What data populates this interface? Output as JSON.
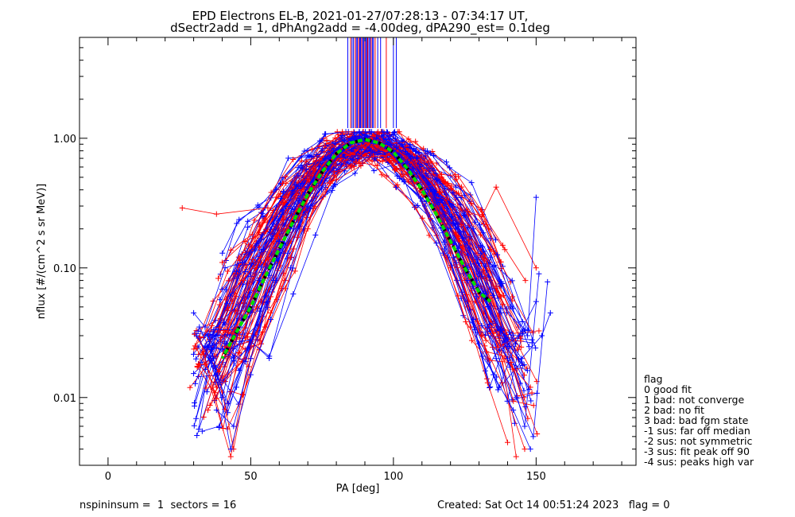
{
  "chart_data": {
    "type": "line",
    "title_line1": "EPD Electrons EL-B, 2021-01-27/07:28:13 - 07:34:17 UT,",
    "title_line2": "dSectr2add = 1, dPhAng2add = -4.00deg, dPA290_est=   0.1deg",
    "xlabel": "PA [deg]",
    "ylabel": "nflux [#/(cm^2 s sr MeV)]",
    "xlim": [
      -10,
      185
    ],
    "ylim": [
      0.003,
      6
    ],
    "yscale": "log",
    "x_ticks": [
      {
        "value": 0,
        "label": "0"
      },
      {
        "value": 50,
        "label": "50"
      },
      {
        "value": 100,
        "label": "100"
      },
      {
        "value": 150,
        "label": "150"
      }
    ],
    "y_ticks": [
      {
        "value": 0.01,
        "label": "0.01"
      },
      {
        "value": 0.1,
        "label": "0.10"
      },
      {
        "value": 1,
        "label": "1.00"
      }
    ],
    "series": [
      {
        "color": "#ff0000",
        "marker": "+",
        "style": "data traces"
      },
      {
        "color": "#0000ff",
        "marker": "+",
        "style": "data traces"
      },
      {
        "color": "#00dd00",
        "style": "dashed fit curve"
      }
    ],
    "fit_curve": {
      "x": [
        40,
        45,
        50,
        55,
        60,
        65,
        70,
        75,
        80,
        85,
        90,
        95,
        100,
        105,
        110,
        115,
        120,
        125,
        130,
        134
      ],
      "y": [
        0.02,
        0.032,
        0.05,
        0.085,
        0.14,
        0.23,
        0.37,
        0.55,
        0.76,
        0.92,
        0.98,
        0.92,
        0.78,
        0.58,
        0.4,
        0.26,
        0.16,
        0.1,
        0.065,
        0.055
      ]
    },
    "sample_traces": {
      "red": [
        {
          "x": [
            26,
            38,
            56
          ],
          "y": [
            0.29,
            0.26,
            0.29
          ]
        },
        {
          "x": [
            31,
            34,
            40,
            44,
            50,
            57,
            64,
            70,
            77,
            82,
            88,
            94,
            100,
            107,
            113,
            120,
            126,
            132,
            138,
            146
          ],
          "y": [
            0.024,
            0.018,
            0.011,
            0.004,
            0.02,
            0.045,
            0.12,
            0.3,
            0.62,
            0.86,
            0.95,
            0.88,
            0.7,
            0.45,
            0.24,
            0.1,
            0.05,
            0.025,
            0.013,
            0.004
          ]
        },
        {
          "x": [
            40,
            48,
            55,
            62,
            68,
            75,
            82,
            88,
            94,
            101,
            108,
            116,
            124,
            131,
            136,
            150
          ],
          "y": [
            0.11,
            0.16,
            0.19,
            0.32,
            0.4,
            0.7,
            0.9,
            0.95,
            0.93,
            0.8,
            0.62,
            0.38,
            0.28,
            0.25,
            0.42,
            0.1
          ]
        },
        {
          "x": [
            35,
            42,
            48,
            55,
            62,
            70,
            78,
            85,
            92,
            99,
            106,
            113,
            120,
            127,
            133,
            140
          ],
          "y": [
            0.008,
            0.015,
            0.02,
            0.035,
            0.08,
            0.2,
            0.45,
            0.75,
            0.98,
            0.9,
            0.66,
            0.38,
            0.13,
            0.035,
            0.013,
            0.0045
          ]
        },
        {
          "x": [
            32,
            38,
            45,
            52,
            60,
            67,
            75,
            83,
            90,
            97,
            104,
            111,
            118,
            125,
            131,
            139,
            148
          ],
          "y": [
            0.018,
            0.012,
            0.028,
            0.05,
            0.11,
            0.26,
            0.55,
            0.88,
            1.0,
            0.92,
            0.7,
            0.42,
            0.22,
            0.08,
            0.03,
            0.02,
            0.012
          ]
        },
        {
          "x": [
            36,
            43,
            50,
            57,
            65,
            72,
            80,
            87,
            95,
            102,
            109,
            116,
            123,
            130,
            137,
            143
          ],
          "y": [
            0.012,
            0.0035,
            0.025,
            0.06,
            0.14,
            0.35,
            0.7,
            0.92,
            0.97,
            0.85,
            0.55,
            0.3,
            0.15,
            0.06,
            0.03,
            0.0035
          ]
        }
      ],
      "blue": [
        {
          "x": [
            30,
            34,
            41,
            47,
            54,
            61,
            68,
            75,
            82,
            88,
            94,
            101,
            108,
            115,
            122,
            128,
            134,
            141,
            147,
            150
          ],
          "y": [
            0.045,
            0.035,
            0.1,
            0.11,
            0.18,
            0.28,
            0.45,
            0.8,
            1.05,
            1.1,
            1.0,
            0.85,
            0.7,
            0.48,
            0.35,
            0.2,
            0.12,
            0.05,
            0.03,
            0.35
          ]
        },
        {
          "x": [
            32,
            37,
            43,
            50,
            57,
            64,
            71,
            78,
            85,
            92,
            99,
            106,
            113,
            120,
            126,
            133,
            140,
            146,
            151
          ],
          "y": [
            0.035,
            0.02,
            0.004,
            0.015,
            0.04,
            0.1,
            0.3,
            0.65,
            0.9,
            0.95,
            0.9,
            0.7,
            0.4,
            0.2,
            0.08,
            0.035,
            0.02,
            0.006,
            0.09
          ]
        },
        {
          "x": [
            34,
            40,
            46,
            53,
            60,
            67,
            74,
            81,
            88,
            95,
            102,
            109,
            116,
            123,
            129,
            136,
            143,
            149,
            154
          ],
          "y": [
            0.025,
            0.01,
            0.035,
            0.08,
            0.16,
            0.33,
            0.6,
            0.85,
            1.0,
            0.92,
            0.75,
            0.55,
            0.32,
            0.15,
            0.06,
            0.02,
            0.01,
            0.005,
            0.078
          ]
        },
        {
          "x": [
            33,
            39,
            45,
            51,
            58,
            65,
            72,
            79,
            86,
            93,
            100,
            107,
            114,
            121,
            128,
            135,
            142,
            148
          ],
          "y": [
            0.0055,
            0.006,
            0.012,
            0.03,
            0.08,
            0.2,
            0.46,
            0.78,
            0.96,
            0.94,
            0.8,
            0.58,
            0.3,
            0.12,
            0.04,
            0.015,
            0.008,
            0.004
          ]
        },
        {
          "x": [
            38,
            44,
            50,
            56,
            63,
            70,
            77,
            84,
            91,
            98,
            105,
            112,
            119,
            126,
            133,
            139,
            145,
            152,
            155
          ],
          "y": [
            0.008,
            0.006,
            0.02,
            0.055,
            0.13,
            0.3,
            0.58,
            0.88,
            0.98,
            0.9,
            0.66,
            0.4,
            0.2,
            0.1,
            0.05,
            0.03,
            0.02,
            0.03,
            0.045
          ]
        },
        {
          "x": [
            31,
            36,
            42,
            49,
            55,
            62,
            69,
            76,
            83,
            90,
            97,
            104,
            111,
            118,
            124,
            130,
            137,
            144,
            150
          ],
          "y": [
            0.03,
            0.02,
            0.009,
            0.024,
            0.06,
            0.15,
            0.38,
            0.7,
            0.95,
            1.0,
            0.86,
            0.6,
            0.3,
            0.14,
            0.065,
            0.026,
            0.012,
            0.03,
            0.055
          ]
        }
      ]
    },
    "vertical_lines_x": [
      84,
      85,
      85.5,
      86,
      86.6,
      87,
      87.4,
      87.8,
      88.2,
      88.5,
      88.9,
      89.2,
      89.6,
      90,
      90.3,
      90.7,
      91,
      91.4,
      91.8,
      92.2,
      92.6,
      93,
      93.6,
      94.5,
      95.5,
      97.5,
      100,
      101
    ]
  },
  "legend": {
    "title": "flag",
    "items": [
      " 0 good fit",
      " 1 bad: not converge",
      " 2 bad: no fit",
      " 3 bad: bad fgm state",
      "-1 sus: far off median",
      "-2 sus: not symmetric",
      "-3 sus: fit peak off 90",
      "-4 sus: peaks high var"
    ]
  },
  "footer": {
    "left": "nspininsum =  1  sectors = 16",
    "right": "Created: Sat Oct 14 00:51:24 2023   flag = 0"
  }
}
